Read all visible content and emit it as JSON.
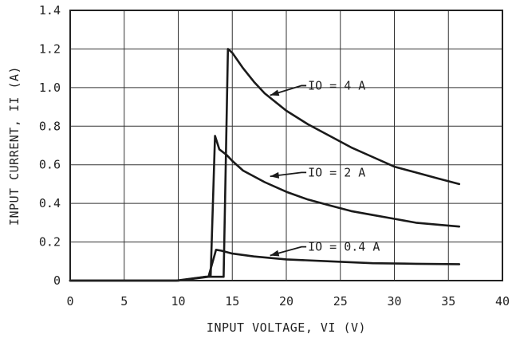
{
  "chart_data": {
    "type": "line",
    "title": "",
    "xlabel": "INPUT VOLTAGE, VI (V)",
    "ylabel": "INPUT CURRENT, II (A)",
    "xlim": [
      0,
      40
    ],
    "ylim": [
      0,
      1.4
    ],
    "xticks": [
      0,
      5,
      10,
      15,
      20,
      25,
      30,
      35,
      40
    ],
    "yticks": [
      0,
      0.2,
      0.4,
      0.6,
      0.8,
      1.0,
      1.2,
      1.4
    ],
    "xtick_labels": [
      "0",
      "5",
      "10",
      "15",
      "20",
      "25",
      "30",
      "35",
      "40"
    ],
    "ytick_labels": [
      "0",
      "0.2",
      "0.4",
      "0.6",
      "0.8",
      "1.0",
      "1.2",
      "1.4"
    ],
    "grid": true,
    "series": [
      {
        "name": "IO = 4 A",
        "x": [
          0,
          9.8,
          12.5,
          14.2,
          14.6,
          15.0,
          16,
          17,
          18,
          20,
          22,
          24,
          26,
          28,
          30,
          32,
          34,
          36
        ],
        "y": [
          0,
          0,
          0.02,
          0.02,
          1.2,
          1.18,
          1.1,
          1.03,
          0.97,
          0.88,
          0.81,
          0.75,
          0.69,
          0.64,
          0.59,
          0.56,
          0.53,
          0.5
        ]
      },
      {
        "name": "IO = 2 A",
        "x": [
          0,
          10,
          12.6,
          13.0,
          13.4,
          13.8,
          14.5,
          15,
          16,
          18,
          20,
          22,
          24,
          26,
          28,
          30,
          32,
          34,
          36
        ],
        "y": [
          0,
          0,
          0.02,
          0.02,
          0.75,
          0.68,
          0.65,
          0.62,
          0.57,
          0.51,
          0.46,
          0.42,
          0.39,
          0.36,
          0.34,
          0.32,
          0.3,
          0.29,
          0.28
        ]
      },
      {
        "name": "IO = 0.4 A",
        "x": [
          0,
          10,
          12.8,
          13.5,
          14,
          15,
          17,
          20,
          24,
          28,
          32,
          36
        ],
        "y": [
          0,
          0,
          0.02,
          0.16,
          0.155,
          0.14,
          0.125,
          0.11,
          0.1,
          0.09,
          0.087,
          0.085
        ]
      }
    ],
    "annotations": [
      {
        "text": "IO = 4 A",
        "x": 22,
        "y": 1.01,
        "target_x": 18.5,
        "target_y": 0.96
      },
      {
        "text": "IO = 2 A",
        "x": 22,
        "y": 0.56,
        "target_x": 18.5,
        "target_y": 0.54
      },
      {
        "text": "IO = 0.4 A",
        "x": 22,
        "y": 0.175,
        "target_x": 18.5,
        "target_y": 0.13
      }
    ]
  }
}
